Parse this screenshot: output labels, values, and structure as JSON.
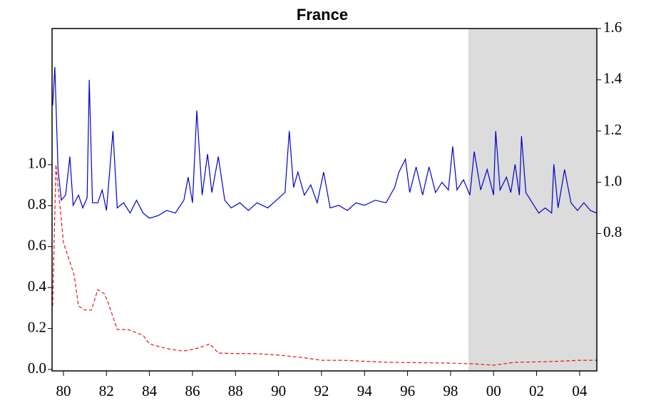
{
  "chart_data": {
    "type": "line",
    "title": "France",
    "xlim": [
      1979.47,
      2004.8
    ],
    "xticks": [
      {
        "value": 1980,
        "label": "80"
      },
      {
        "value": 1982,
        "label": "82"
      },
      {
        "value": 1984,
        "label": "84"
      },
      {
        "value": 1986,
        "label": "86"
      },
      {
        "value": 1988,
        "label": "88"
      },
      {
        "value": 1990,
        "label": "90"
      },
      {
        "value": 1992,
        "label": "92"
      },
      {
        "value": 1994,
        "label": "94"
      },
      {
        "value": 1996,
        "label": "96"
      },
      {
        "value": 1998,
        "label": "98"
      },
      {
        "value": 2000,
        "label": "00"
      },
      {
        "value": 2002,
        "label": "02"
      },
      {
        "value": 2004,
        "label": "04"
      }
    ],
    "ylim": [
      -0.007,
      1.665
    ],
    "yticks": [
      {
        "value": 0,
        "label": "0.0"
      },
      0.2,
      0.4,
      0.6,
      0.8,
      {
        "value": 1,
        "label": "1.0"
      }
    ],
    "y2lim": [
      0.264,
      1.6
    ],
    "y2ticks": [
      0.8,
      {
        "value": 1,
        "label": "1.0"
      },
      1.2,
      1.4,
      1.6
    ],
    "shaded_range": [
      1998.83,
      2004.8
    ],
    "shade_color": "#dcdcdc",
    "series": [
      {
        "color": "#0000cc",
        "axis": "y2",
        "dashed": false,
        "x": [
          1979.5,
          1979.6,
          1979.75,
          1979.9,
          1980.1,
          1980.3,
          1980.45,
          1980.7,
          1980.9,
          1981.1,
          1981.2,
          1981.35,
          1981.6,
          1981.8,
          1982.0,
          1982.3,
          1982.5,
          1982.8,
          1983.1,
          1983.4,
          1983.7,
          1984.0,
          1984.4,
          1984.8,
          1985.2,
          1985.6,
          1985.8,
          1986.0,
          1986.2,
          1986.45,
          1986.7,
          1986.9,
          1987.2,
          1987.5,
          1987.8,
          1988.2,
          1988.6,
          1989.0,
          1989.5,
          1989.9,
          1990.3,
          1990.5,
          1990.7,
          1990.9,
          1991.2,
          1991.5,
          1991.8,
          1992.1,
          1992.4,
          1992.8,
          1993.2,
          1993.6,
          1994.0,
          1994.5,
          1995.0,
          1995.4,
          1995.6,
          1995.9,
          1996.1,
          1996.4,
          1996.7,
          1997.0,
          1997.3,
          1997.6,
          1997.9,
          1998.1,
          1998.3,
          1998.6,
          1998.9,
          1999.1,
          1999.4,
          1999.7,
          2000.0,
          2000.1,
          2000.3,
          2000.6,
          2000.8,
          2001.0,
          2001.2,
          2001.3,
          2001.5,
          2001.8,
          2002.1,
          2002.4,
          2002.7,
          2002.8,
          2003.0,
          2003.3,
          2003.6,
          2003.9,
          2004.2,
          2004.5,
          2004.8
        ],
        "values": [
          1.3,
          1.45,
          1.05,
          0.93,
          0.95,
          1.1,
          0.91,
          0.95,
          0.9,
          0.94,
          1.4,
          0.92,
          0.92,
          0.97,
          0.89,
          1.2,
          0.9,
          0.92,
          0.88,
          0.93,
          0.88,
          0.86,
          0.87,
          0.89,
          0.88,
          0.93,
          1.02,
          0.92,
          1.28,
          0.95,
          1.11,
          0.96,
          1.1,
          0.93,
          0.9,
          0.92,
          0.89,
          0.92,
          0.9,
          0.93,
          0.96,
          1.2,
          0.98,
          1.04,
          0.95,
          0.99,
          0.92,
          1.04,
          0.9,
          0.91,
          0.89,
          0.92,
          0.91,
          0.93,
          0.92,
          0.98,
          1.04,
          1.09,
          0.96,
          1.06,
          0.95,
          1.06,
          0.96,
          1.0,
          0.97,
          1.14,
          0.97,
          1.01,
          0.95,
          1.12,
          0.97,
          1.05,
          0.95,
          1.2,
          0.97,
          1.02,
          0.96,
          1.07,
          0.95,
          1.18,
          0.96,
          0.92,
          0.88,
          0.9,
          0.88,
          1.07,
          0.9,
          1.05,
          0.92,
          0.89,
          0.92,
          0.89,
          0.88
        ]
      },
      {
        "color": "#e8141e",
        "axis": "y",
        "dashed": true,
        "x": [
          1979.5,
          1979.65,
          1980.0,
          1980.5,
          1980.7,
          1981.0,
          1981.3,
          1981.6,
          1981.9,
          1982.1,
          1982.5,
          1983.0,
          1983.7,
          1984.0,
          1984.5,
          1985.0,
          1985.6,
          1986.3,
          1986.8,
          1987.2,
          1988.0,
          1989.0,
          1990.0,
          1991.0,
          1992.0,
          1993.0,
          1995.0,
          1996.5,
          1998.0,
          1999.0,
          2000.0,
          2001.0,
          2002.0,
          2003.0,
          2004.0,
          2004.8
        ],
        "values": [
          0.31,
          1.0,
          0.62,
          0.46,
          0.31,
          0.29,
          0.29,
          0.39,
          0.37,
          0.32,
          0.195,
          0.195,
          0.167,
          0.125,
          0.11,
          0.098,
          0.09,
          0.105,
          0.125,
          0.08,
          0.078,
          0.077,
          0.07,
          0.06,
          0.045,
          0.045,
          0.035,
          0.033,
          0.031,
          0.028,
          0.021,
          0.035,
          0.037,
          0.04,
          0.045,
          0.045
        ]
      }
    ]
  }
}
